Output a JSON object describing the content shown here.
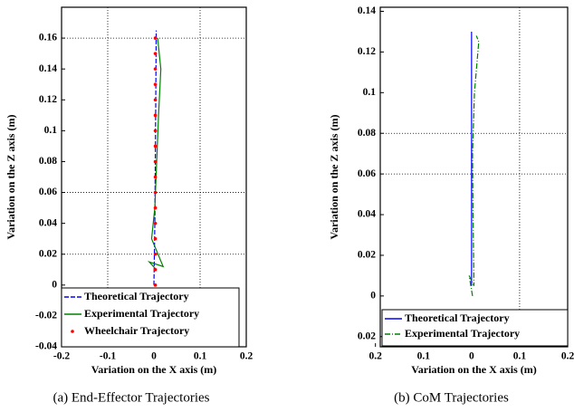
{
  "chart_data": [
    {
      "type": "line",
      "caption": "(a) End-Effector Trajectories",
      "x_label": "Variation on the X axis (m)",
      "y_label": "Variation on the Z axis (m)",
      "xlim": [
        -0.2,
        0.2
      ],
      "ylim": [
        -0.04,
        0.18
      ],
      "xticks": [
        -0.2,
        -0.1,
        0,
        0.1,
        0.2
      ],
      "yticks": [
        -0.04,
        -0.02,
        0,
        0.02,
        0.04,
        0.06,
        0.08,
        0.1,
        0.12,
        0.14,
        0.16
      ],
      "grid_x": [
        -0.1,
        0.1
      ],
      "grid_y": [
        0.02,
        0.06,
        0.16
      ],
      "series": [
        {
          "name": "Theoretical Trajectory",
          "color": "#0000ff",
          "line_style": "dashed",
          "x": [
            0,
            0.002,
            0.003,
            0.004,
            0.005
          ],
          "values": [
            0,
            0.04,
            0.08,
            0.12,
            0.165
          ]
        },
        {
          "name": "Experimental Trajectory",
          "color": "#008000",
          "line_style": "solid",
          "x": [
            0.005,
            -0.01,
            0.02,
            -0.005,
            0.002,
            0.006,
            0.01,
            0.015,
            0.008
          ],
          "values": [
            0.01,
            0.015,
            0.012,
            0.03,
            0.05,
            0.08,
            0.11,
            0.14,
            0.16
          ]
        },
        {
          "name": "Wheelchair Trajectory",
          "color": "#ff0000",
          "line_style": "none",
          "x": [
            0.003,
            0.003,
            0.003,
            0.003,
            0.003,
            0.003,
            0.003,
            0.003,
            0.003,
            0.003,
            0.003,
            0.003,
            0.003,
            0.003,
            0.003,
            0.003,
            0.003
          ],
          "values": [
            0,
            0.01,
            0.02,
            0.03,
            0.04,
            0.05,
            0.06,
            0.07,
            0.08,
            0.09,
            0.1,
            0.11,
            0.12,
            0.13,
            0.14,
            0.15,
            0.16
          ]
        }
      ]
    },
    {
      "type": "line",
      "caption": "(b) CoM Trajectories",
      "x_label": "Variation on the X axis (m)",
      "y_label": "Variation on the Z axis (m)",
      "xlim": [
        -0.19,
        0.2
      ],
      "ylim": [
        -0.025,
        0.142
      ],
      "xticks": [
        {
          "value": -0.2,
          "label": "0.2"
        },
        {
          "value": -0.1,
          "label": "0.1"
        },
        0,
        0.1,
        0.2
      ],
      "yticks": [
        {
          "value": -0.02,
          "label": "0.02"
        },
        0,
        0.02,
        0.04,
        0.06,
        0.08,
        0.1,
        0.12,
        0.14
      ],
      "grid_x": [
        0.1
      ],
      "grid_y": [
        0.06,
        0.08
      ],
      "series": [
        {
          "name": "Theoretical Trajectory",
          "color": "#0000ff",
          "line_style": "solid",
          "x": [
            0,
            0,
            0
          ],
          "values": [
            0.005,
            0.07,
            0.13
          ]
        },
        {
          "name": "Experimental Trajectory",
          "color": "#008000",
          "line_style": "dashdot",
          "x": [
            0.002,
            -0.005,
            0.005,
            0.003,
            0.002,
            0.006,
            0.015,
            0.01
          ],
          "values": [
            0,
            0.01,
            0.005,
            0.04,
            0.07,
            0.1,
            0.125,
            0.128
          ]
        }
      ]
    }
  ]
}
